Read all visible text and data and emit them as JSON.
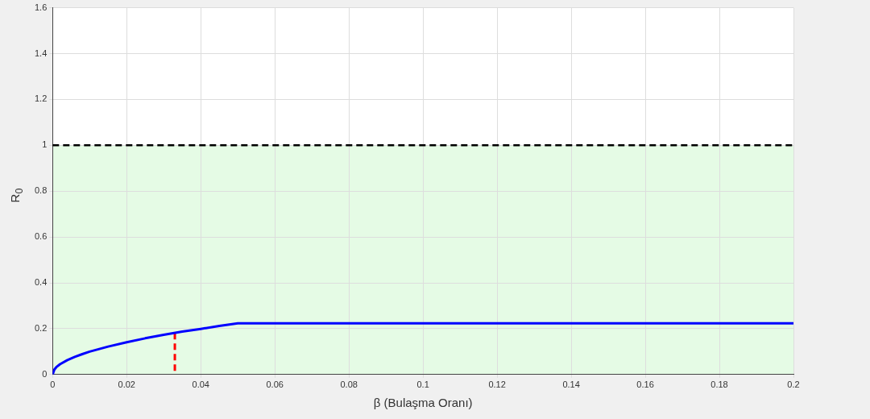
{
  "chart_data": {
    "type": "line",
    "xlabel": "β (Bulaşma Oranı)",
    "ylabel": "R$_{0}$",
    "xlim": [
      0,
      0.2
    ],
    "xticks": [
      0,
      0.02,
      0.04,
      0.06,
      0.08,
      0.1,
      0.12,
      0.14,
      0.16,
      0.18,
      0.2
    ],
    "ylim": [
      0,
      1.6
    ],
    "yticks": [
      0,
      0.2,
      0.4,
      0.6,
      0.8,
      1,
      1.2,
      1.4,
      1.6
    ],
    "grid": true,
    "legend": false,
    "marker": "none",
    "series": [
      {
        "color": "#0000ff",
        "x": [
          0,
          0.0005,
          0.001,
          0.002,
          0.004,
          0.006,
          0.008,
          0.01,
          0.015,
          0.02,
          0.025,
          0.03,
          0.035,
          0.04,
          0.045,
          0.05,
          0.2
        ],
        "values": [
          0,
          0.022,
          0.032,
          0.045,
          0.063,
          0.077,
          0.089,
          0.1,
          0.122,
          0.141,
          0.158,
          0.173,
          0.187,
          0.199,
          0.212,
          0.223,
          0.223
        ],
        "line_style": "solid"
      },
      {
        "color": "#ff0000",
        "x": [
          0.033,
          0.033
        ],
        "values": [
          0.181,
          0
        ],
        "line_style": "dashed"
      }
    ],
    "ref_lines": [
      {
        "axis": "y",
        "value": 1,
        "color": "#000000",
        "line_style": "dashed"
      }
    ],
    "bands": [
      {
        "axis": "y",
        "from": 0,
        "to": 1,
        "color": "#e5fbe5"
      }
    ]
  }
}
